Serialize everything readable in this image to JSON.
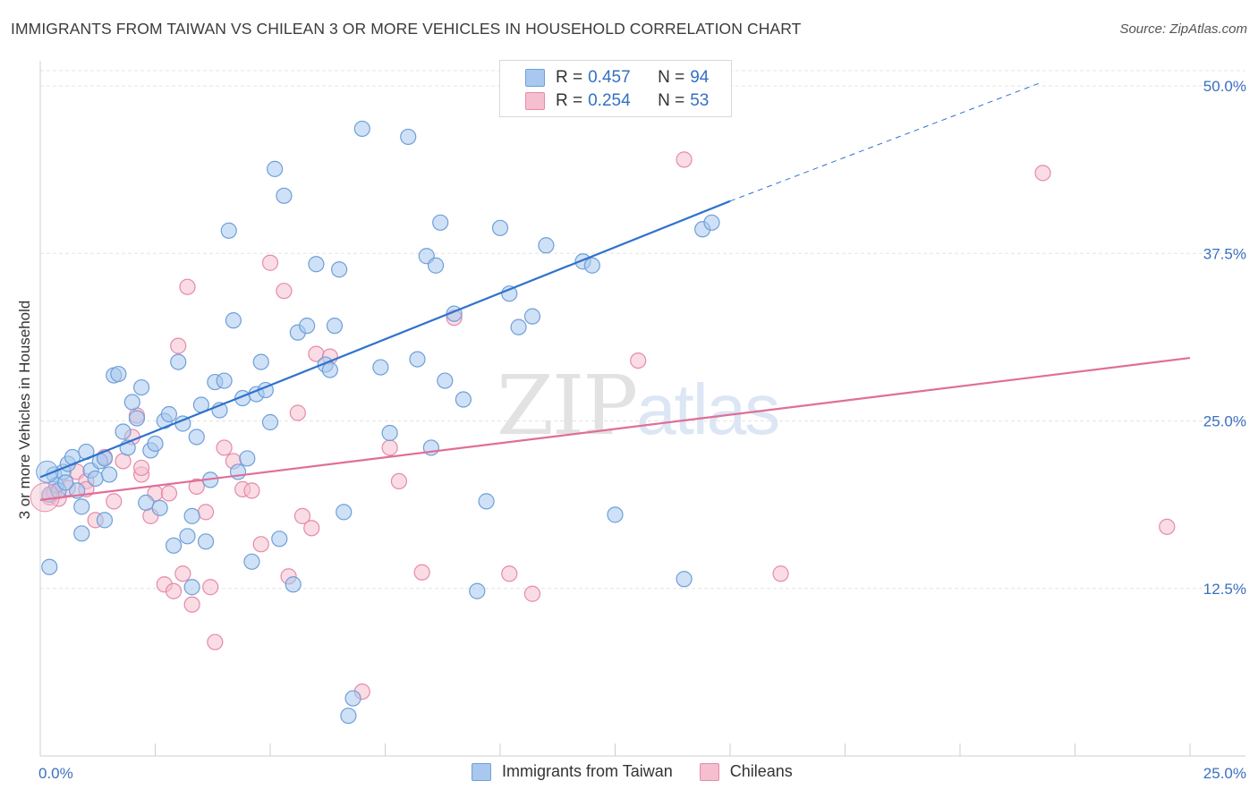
{
  "title": "IMMIGRANTS FROM TAIWAN VS CHILEAN 3 OR MORE VEHICLES IN HOUSEHOLD CORRELATION CHART",
  "source": "Source: ZipAtlas.com",
  "watermark": {
    "zip": "ZIP",
    "atlas": "atlas"
  },
  "legend_top": {
    "rows": [
      {
        "r_label": "R = ",
        "r_value": "0.457",
        "n_label": "N = ",
        "n_value": "94"
      },
      {
        "r_label": "R = ",
        "r_value": "0.254",
        "n_label": "N = ",
        "n_value": "53"
      }
    ]
  },
  "legend_bottom": {
    "series1": "Immigrants from Taiwan",
    "series2": "Chileans"
  },
  "colors": {
    "blue_fill": "#a8c8ef",
    "blue_stroke": "#6f9fd8",
    "blue_line": "#2e72cc",
    "pink_fill": "#f5bfd0",
    "pink_stroke": "#e68aa8",
    "pink_line": "#e06e98",
    "tick_label": "#3a70c0",
    "grid": "#e4e4e4"
  },
  "chart_data": {
    "type": "scatter",
    "title": "IMMIGRANTS FROM TAIWAN VS CHILEAN 3 OR MORE VEHICLES IN HOUSEHOLD CORRELATION CHART",
    "xlabel": "",
    "ylabel": "3 or more Vehicles in Household",
    "xlim": [
      0,
      25
    ],
    "ylim": [
      0,
      50
    ],
    "x_tick_labels": [
      "0.0%",
      "25.0%"
    ],
    "y_ticks": [
      12.5,
      25.0,
      37.5,
      50.0
    ],
    "y_tick_labels": [
      "12.5%",
      "25.0%",
      "37.5%",
      "50.0%"
    ],
    "grid": true,
    "legend_position": "top-center",
    "series": [
      {
        "name": "Immigrants from Taiwan",
        "R": 0.457,
        "N": 94,
        "trend": {
          "x0": 0,
          "y0": 20.8,
          "x1": 15,
          "y1": 41.4,
          "dashed_to_x": 21.8,
          "dashed_to_y": 50.3
        },
        "points": [
          [
            0.2,
            19.5
          ],
          [
            0.3,
            21.0
          ],
          [
            0.35,
            20.2
          ],
          [
            0.4,
            19.8
          ],
          [
            0.5,
            21.2
          ],
          [
            0.6,
            21.8
          ],
          [
            0.7,
            22.3
          ],
          [
            0.8,
            19.8
          ],
          [
            0.9,
            18.6
          ],
          [
            1.0,
            22.7
          ],
          [
            1.1,
            21.3
          ],
          [
            1.2,
            20.7
          ],
          [
            1.3,
            22.0
          ],
          [
            1.4,
            22.2
          ],
          [
            1.5,
            21.0
          ],
          [
            1.6,
            28.4
          ],
          [
            1.7,
            28.5
          ],
          [
            1.8,
            24.2
          ],
          [
            1.9,
            23.0
          ],
          [
            2.0,
            26.4
          ],
          [
            2.1,
            25.2
          ],
          [
            2.2,
            27.5
          ],
          [
            2.3,
            18.9
          ],
          [
            2.4,
            22.8
          ],
          [
            2.5,
            23.3
          ],
          [
            2.6,
            18.5
          ],
          [
            2.7,
            25.0
          ],
          [
            2.8,
            25.5
          ],
          [
            2.9,
            15.7
          ],
          [
            3.0,
            29.4
          ],
          [
            3.1,
            24.8
          ],
          [
            3.2,
            16.4
          ],
          [
            3.3,
            17.9
          ],
          [
            3.4,
            23.8
          ],
          [
            3.5,
            26.2
          ],
          [
            3.6,
            16.0
          ],
          [
            3.7,
            20.6
          ],
          [
            3.8,
            27.9
          ],
          [
            3.9,
            25.8
          ],
          [
            4.0,
            28.0
          ],
          [
            4.1,
            39.2
          ],
          [
            4.2,
            32.5
          ],
          [
            4.3,
            21.2
          ],
          [
            4.4,
            26.7
          ],
          [
            4.5,
            22.2
          ],
          [
            4.6,
            14.5
          ],
          [
            4.7,
            27.0
          ],
          [
            4.8,
            29.4
          ],
          [
            4.9,
            27.3
          ],
          [
            5.0,
            24.9
          ],
          [
            5.1,
            43.8
          ],
          [
            5.2,
            16.2
          ],
          [
            5.3,
            41.8
          ],
          [
            5.6,
            31.6
          ],
          [
            5.8,
            32.1
          ],
          [
            6.0,
            36.7
          ],
          [
            6.2,
            29.2
          ],
          [
            6.3,
            28.8
          ],
          [
            6.4,
            32.1
          ],
          [
            6.5,
            36.3
          ],
          [
            6.6,
            18.2
          ],
          [
            6.7,
            3.0
          ],
          [
            6.8,
            4.3
          ],
          [
            5.5,
            12.8
          ],
          [
            7.0,
            46.8
          ],
          [
            7.4,
            29.0
          ],
          [
            7.6,
            24.1
          ],
          [
            8.0,
            46.2
          ],
          [
            8.2,
            29.6
          ],
          [
            8.4,
            37.3
          ],
          [
            8.5,
            23.0
          ],
          [
            8.6,
            36.6
          ],
          [
            8.7,
            39.8
          ],
          [
            8.8,
            28.0
          ],
          [
            9.0,
            33.0
          ],
          [
            9.2,
            26.6
          ],
          [
            9.5,
            12.3
          ],
          [
            9.7,
            19.0
          ],
          [
            10.0,
            39.4
          ],
          [
            10.2,
            34.5
          ],
          [
            10.4,
            32.0
          ],
          [
            10.7,
            32.8
          ],
          [
            11.0,
            38.1
          ],
          [
            11.8,
            36.9
          ],
          [
            12.0,
            36.6
          ],
          [
            12.5,
            18.0
          ],
          [
            14.0,
            13.2
          ],
          [
            14.4,
            39.3
          ],
          [
            14.6,
            39.8
          ],
          [
            0.2,
            14.1
          ],
          [
            0.9,
            16.6
          ],
          [
            1.4,
            17.6
          ],
          [
            3.3,
            12.6
          ],
          [
            0.55,
            20.4
          ]
        ]
      },
      {
        "name": "Chileans",
        "R": 0.254,
        "N": 53,
        "trend": {
          "x0": 0,
          "y0": 19.1,
          "x1": 25,
          "y1": 29.7
        },
        "points": [
          [
            0.2,
            19.3
          ],
          [
            0.3,
            19.7
          ],
          [
            0.4,
            19.2
          ],
          [
            0.6,
            20.0
          ],
          [
            0.8,
            21.2
          ],
          [
            1.0,
            20.5
          ],
          [
            1.2,
            17.6
          ],
          [
            1.4,
            22.3
          ],
          [
            1.6,
            19.0
          ],
          [
            1.8,
            22.0
          ],
          [
            2.0,
            23.8
          ],
          [
            2.1,
            25.4
          ],
          [
            2.2,
            21.0
          ],
          [
            2.4,
            17.9
          ],
          [
            2.5,
            19.6
          ],
          [
            2.7,
            12.8
          ],
          [
            2.8,
            19.6
          ],
          [
            2.9,
            12.3
          ],
          [
            3.0,
            30.6
          ],
          [
            3.1,
            13.6
          ],
          [
            3.2,
            35.0
          ],
          [
            3.3,
            11.3
          ],
          [
            3.4,
            20.1
          ],
          [
            3.6,
            18.2
          ],
          [
            3.7,
            12.6
          ],
          [
            3.8,
            8.5
          ],
          [
            4.0,
            23.0
          ],
          [
            4.2,
            22.0
          ],
          [
            4.4,
            19.9
          ],
          [
            4.6,
            19.8
          ],
          [
            4.8,
            15.8
          ],
          [
            5.0,
            36.8
          ],
          [
            5.3,
            34.7
          ],
          [
            5.4,
            13.4
          ],
          [
            5.6,
            25.6
          ],
          [
            5.7,
            17.9
          ],
          [
            5.9,
            17.0
          ],
          [
            6.0,
            30.0
          ],
          [
            6.3,
            29.8
          ],
          [
            7.0,
            4.8
          ],
          [
            7.6,
            23.0
          ],
          [
            7.8,
            20.5
          ],
          [
            8.3,
            13.7
          ],
          [
            9.0,
            32.7
          ],
          [
            10.2,
            13.6
          ],
          [
            10.7,
            12.1
          ],
          [
            13.0,
            29.5
          ],
          [
            14.0,
            44.5
          ],
          [
            16.1,
            13.6
          ],
          [
            21.8,
            43.5
          ],
          [
            24.5,
            17.1
          ],
          [
            1.0,
            19.9
          ],
          [
            2.2,
            21.5
          ]
        ]
      }
    ]
  }
}
